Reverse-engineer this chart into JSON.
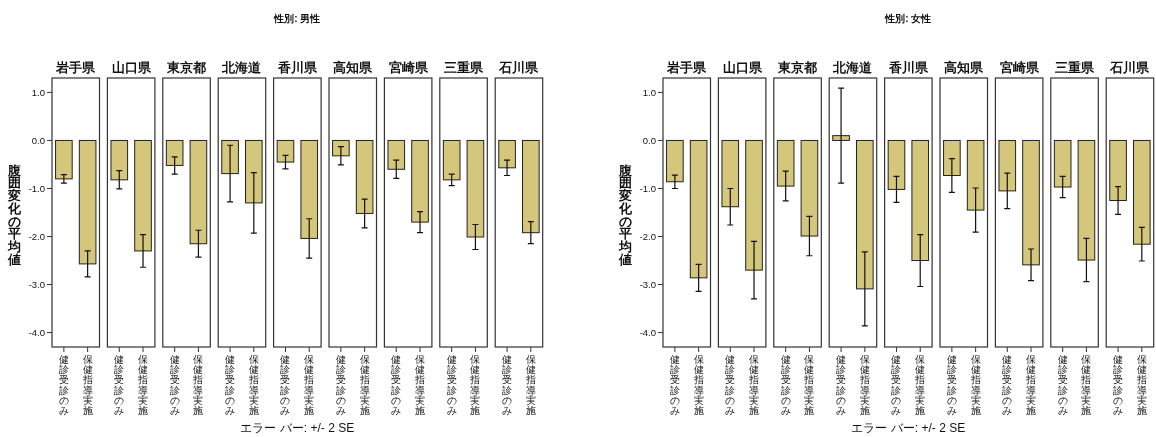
{
  "chart_data": [
    {
      "type": "bar",
      "title": "岩手県",
      "ylabel": "腹囲変化の平均値",
      "annotations": [
        "性別: 男性",
        "エラー バー: +/- 2 SE"
      ],
      "categories": [
        "健診受診のみ",
        "保健指導実施"
      ],
      "values": [
        -0.8,
        -2.57
      ],
      "errors": [
        0.09,
        0.27
      ],
      "color": "#d4c77c",
      "ylim": [
        -4.3,
        1.3
      ],
      "yticks": [
        {
          "value": 1,
          "label": "1.0"
        },
        {
          "value": 0,
          "label": "0.0"
        },
        {
          "value": -1,
          "label": "-1.0"
        },
        {
          "value": -2,
          "label": "-2.0"
        },
        {
          "value": -3,
          "label": "-3.0"
        },
        {
          "value": -4,
          "label": "-4.0"
        }
      ]
    },
    {
      "type": "bar",
      "title": "山口県",
      "categories": [
        "健診受診のみ",
        "保健指導実施"
      ],
      "values": [
        -0.82,
        -2.3
      ],
      "errors": [
        0.19,
        0.34
      ],
      "color": "#d4c77c",
      "ylim": [
        -4.3,
        1.3
      ],
      "tick_labels": "x"
    },
    {
      "type": "bar",
      "title": "東京都",
      "categories": [
        "健診受診のみ",
        "保健指導実施"
      ],
      "values": [
        -0.52,
        -2.15
      ],
      "errors": [
        0.18,
        0.28
      ],
      "color": "#d4c77c",
      "ylim": [
        -4.3,
        1.3
      ],
      "tick_labels": "x"
    },
    {
      "type": "bar",
      "title": "北海道",
      "categories": [
        "健診受診のみ",
        "保健指導実施"
      ],
      "values": [
        -0.69,
        -1.3
      ],
      "errors": [
        0.59,
        0.63
      ],
      "color": "#d4c77c",
      "ylim": [
        -4.3,
        1.3
      ],
      "tick_labels": "x"
    },
    {
      "type": "bar",
      "title": "香川県",
      "categories": [
        "健診受診のみ",
        "保健指導実施"
      ],
      "values": [
        -0.45,
        -2.04
      ],
      "errors": [
        0.14,
        0.41
      ],
      "color": "#d4c77c",
      "ylim": [
        -4.3,
        1.3
      ],
      "tick_labels": "x"
    },
    {
      "type": "bar",
      "title": "高知県",
      "categories": [
        "健診受診のみ",
        "保健指導実施"
      ],
      "values": [
        -0.32,
        -1.52
      ],
      "errors": [
        0.19,
        0.3
      ],
      "color": "#d4c77c",
      "ylim": [
        -4.3,
        1.3
      ],
      "tick_labels": "x"
    },
    {
      "type": "bar",
      "title": "宮崎県",
      "categories": [
        "健診受診のみ",
        "保健指導実施"
      ],
      "values": [
        -0.6,
        -1.7
      ],
      "errors": [
        0.19,
        0.22
      ],
      "color": "#d4c77c",
      "ylim": [
        -4.3,
        1.3
      ],
      "tick_labels": "x"
    },
    {
      "type": "bar",
      "title": "三重県",
      "categories": [
        "健診受診のみ",
        "保健指導実施"
      ],
      "values": [
        -0.82,
        -2.01
      ],
      "errors": [
        0.12,
        0.26
      ],
      "color": "#d4c77c",
      "ylim": [
        -4.3,
        1.3
      ],
      "tick_labels": "x"
    },
    {
      "type": "bar",
      "title": "石川県",
      "categories": [
        "健診受診のみ",
        "保健指導実施"
      ],
      "values": [
        -0.57,
        -1.92
      ],
      "errors": [
        0.16,
        0.23
      ],
      "color": "#d4c77c",
      "ylim": [
        -4.3,
        1.3
      ],
      "tick_labels": "x"
    },
    {
      "type": "bar",
      "title": "岩手県",
      "ylabel": "腹囲変化の平均値",
      "annotations": [
        "性別: 女性",
        "エラー バー: +/- 2 SE"
      ],
      "categories": [
        "健診受診のみ",
        "保健指導実施"
      ],
      "values": [
        -0.86,
        -2.86
      ],
      "errors": [
        0.14,
        0.28
      ],
      "color": "#d4c77c",
      "ylim": [
        -4.3,
        1.3
      ],
      "yticks": [
        {
          "value": 1,
          "label": "1.0"
        },
        {
          "value": 0,
          "label": "0.0"
        },
        {
          "value": -1,
          "label": "-1.0"
        },
        {
          "value": -2,
          "label": "-2.0"
        },
        {
          "value": -3,
          "label": "-3.0"
        },
        {
          "value": -4,
          "label": "-4.0"
        }
      ]
    },
    {
      "type": "bar",
      "title": "山口県",
      "categories": [
        "健診受診のみ",
        "保健指導実施"
      ],
      "values": [
        -1.38,
        -2.7
      ],
      "errors": [
        0.38,
        0.6
      ],
      "color": "#d4c77c",
      "ylim": [
        -4.3,
        1.3
      ],
      "tick_labels": "x"
    },
    {
      "type": "bar",
      "title": "東京都",
      "categories": [
        "健診受診のみ",
        "保健指導実施"
      ],
      "values": [
        -0.95,
        -1.99
      ],
      "errors": [
        0.31,
        0.41
      ],
      "color": "#d4c77c",
      "ylim": [
        -4.3,
        1.3
      ],
      "tick_labels": "x"
    },
    {
      "type": "bar",
      "title": "北海道",
      "categories": [
        "健診受診のみ",
        "保健指導実施"
      ],
      "values": [
        0.1,
        -3.09
      ],
      "errors": [
        0.99,
        0.77
      ],
      "color": "#d4c77c",
      "ylim": [
        -4.3,
        1.3
      ],
      "tick_labels": "x"
    },
    {
      "type": "bar",
      "title": "香川県",
      "categories": [
        "健診受診のみ",
        "保健指導実施"
      ],
      "values": [
        -1.02,
        -2.5
      ],
      "errors": [
        0.27,
        0.54
      ],
      "color": "#d4c77c",
      "ylim": [
        -4.3,
        1.3
      ],
      "tick_labels": "x"
    },
    {
      "type": "bar",
      "title": "高知県",
      "categories": [
        "健診受診のみ",
        "保健指導実施"
      ],
      "values": [
        -0.73,
        -1.45
      ],
      "errors": [
        0.35,
        0.46
      ],
      "color": "#d4c77c",
      "ylim": [
        -4.3,
        1.3
      ],
      "tick_labels": "x"
    },
    {
      "type": "bar",
      "title": "宮崎県",
      "categories": [
        "健診受診のみ",
        "保健指導実施"
      ],
      "values": [
        -1.05,
        -2.59
      ],
      "errors": [
        0.37,
        0.33
      ],
      "color": "#d4c77c",
      "ylim": [
        -4.3,
        1.3
      ],
      "tick_labels": "x"
    },
    {
      "type": "bar",
      "title": "三重県",
      "categories": [
        "健診受診のみ",
        "保健指導実施"
      ],
      "values": [
        -0.97,
        -2.49
      ],
      "errors": [
        0.22,
        0.45
      ],
      "color": "#d4c77c",
      "ylim": [
        -4.3,
        1.3
      ],
      "tick_labels": "x"
    },
    {
      "type": "bar",
      "title": "石川県",
      "categories": [
        "健診受診のみ",
        "保健指導実施"
      ],
      "values": [
        -1.25,
        -2.16
      ],
      "errors": [
        0.29,
        0.35
      ],
      "color": "#d4c77c",
      "ylim": [
        -4.3,
        1.3
      ],
      "tick_labels": "x"
    }
  ]
}
